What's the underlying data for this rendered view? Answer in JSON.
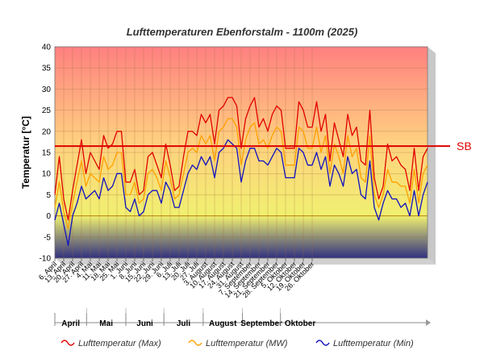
{
  "chart_data": {
    "type": "line",
    "title": "Lufttemperaturen Ebenforstalm - 1100m (2025)",
    "ylabel": "Temperatur [°C]",
    "ylim": [
      -10,
      40
    ],
    "yticks": [
      -10,
      -5,
      0,
      5,
      10,
      15,
      20,
      25,
      30,
      35,
      40
    ],
    "x_start": "6. April",
    "x_end": "31. Oktober",
    "xtick_labels": [
      "6. April",
      "13. April",
      "20. April",
      "27. April",
      "4. Mai",
      "11. Mai",
      "18. Mai",
      "25. Mai",
      "1. Juni",
      "8. Juni",
      "15. Juni",
      "22. Juni",
      "29. Juni",
      "6. Juli",
      "13. Juli",
      "20. Juli",
      "27. Juli",
      "3. August",
      "10. August",
      "17. August",
      "24. August",
      "31. August",
      "7. September",
      "14. September",
      "21. September",
      "28. September",
      "5. Oktober",
      "12. Oktober",
      "19. Oktober",
      "26. Oktober"
    ],
    "months": [
      "April",
      "Mai",
      "Juni",
      "Juli",
      "August",
      "September",
      "Oktober"
    ],
    "reference_line": {
      "label": "SB",
      "value": 16.5,
      "color": "#e00000"
    },
    "background_gradient": [
      "#ff8080",
      "#ffd080",
      "#f0f070",
      "#303080"
    ],
    "grid": true,
    "legend_position": "bottom",
    "x_step_days": 3.5,
    "series": [
      {
        "name": "Lufttemperatur (Max)",
        "color": "#e00000",
        "values": [
          5,
          14,
          4,
          -1,
          6,
          12,
          18,
          10,
          15,
          13,
          11,
          19,
          16,
          17,
          20,
          20,
          8,
          8,
          11,
          5,
          6,
          14,
          15,
          12,
          9,
          17,
          12,
          6,
          7,
          14,
          20,
          20,
          19,
          24,
          22,
          24,
          17,
          25,
          26,
          28,
          28,
          26,
          16,
          23,
          26,
          28,
          21,
          23,
          20,
          24,
          26,
          25,
          16,
          16,
          16,
          27,
          25,
          21,
          21,
          27,
          20,
          24,
          13,
          22,
          18,
          14,
          24,
          19,
          21,
          13,
          12,
          25,
          9,
          4,
          7,
          17,
          13,
          14,
          12,
          11,
          6,
          16,
          6,
          14,
          16
        ]
      },
      {
        "name": "Lufttemperatur (MW)",
        "color": "#ffa000",
        "values": [
          2,
          8,
          1,
          -3,
          3,
          8,
          13,
          7,
          10,
          9,
          8,
          14,
          11,
          12,
          15,
          15,
          5,
          5,
          8,
          3,
          4,
          10,
          11,
          9,
          6,
          13,
          9,
          4,
          5,
          10,
          15,
          16,
          15,
          19,
          17,
          19,
          13,
          20,
          21,
          23,
          23,
          21,
          12,
          18,
          21,
          22,
          17,
          18,
          16,
          19,
          21,
          20,
          12,
          12,
          12,
          21,
          20,
          16,
          16,
          21,
          15,
          19,
          10,
          17,
          14,
          10,
          19,
          14,
          16,
          9,
          8,
          19,
          5,
          2,
          5,
          11,
          8,
          8,
          7,
          7,
          3,
          11,
          3,
          10,
          12
        ]
      },
      {
        "name": "Lufttemperatur (Min)",
        "color": "#1010c0",
        "values": [
          -1,
          3,
          -2,
          -7,
          0,
          3,
          7,
          4,
          5,
          6,
          4,
          9,
          6,
          7,
          10,
          10,
          2,
          1,
          4,
          0,
          1,
          5,
          6,
          6,
          3,
          8,
          6,
          2,
          2,
          6,
          10,
          12,
          11,
          14,
          12,
          14,
          9,
          15,
          16,
          18,
          17,
          16,
          8,
          13,
          16,
          16,
          13,
          13,
          12,
          14,
          16,
          15,
          9,
          9,
          9,
          16,
          15,
          12,
          12,
          15,
          11,
          14,
          7,
          12,
          10,
          7,
          14,
          10,
          11,
          5,
          4,
          13,
          2,
          -1,
          3,
          6,
          4,
          4,
          2,
          3,
          0,
          6,
          0,
          5,
          8
        ]
      }
    ]
  }
}
